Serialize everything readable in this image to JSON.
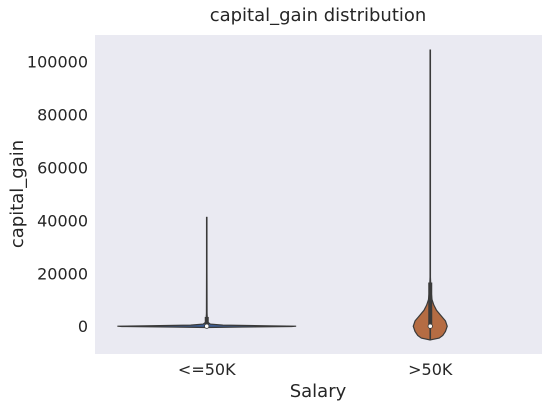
{
  "chart_data": {
    "type": "violin",
    "title": "capital_gain distribution",
    "xlabel": "Salary",
    "ylabel": "capital_gain",
    "categories": [
      "<=50K",
      ">50K"
    ],
    "ylim": [
      -10500,
      110000
    ],
    "yticks": [
      0,
      20000,
      40000,
      60000,
      80000,
      100000
    ],
    "grid": false,
    "violins": [
      {
        "category": "<=50K",
        "color": "#4C72B0",
        "min": -300,
        "max": 41310,
        "q1": 0,
        "median": 0,
        "q3": 0,
        "whisker_high": 3500,
        "density": [
          [
            -500,
            0.0
          ],
          [
            -300,
            0.4
          ],
          [
            -100,
            0.95
          ],
          [
            0,
            1.0
          ],
          [
            150,
            0.7
          ],
          [
            400,
            0.18
          ],
          [
            800,
            0.04
          ],
          [
            1500,
            0.012
          ],
          [
            3000,
            0.006
          ],
          [
            5000,
            0.003
          ],
          [
            41310,
            0.0
          ]
        ]
      },
      {
        "category": ">50K",
        "color": "#DD8452",
        "min": -5000,
        "max": 104500,
        "q1": -300,
        "median": 0,
        "q3": 300,
        "whisker_high": 16500,
        "density": [
          [
            -5200,
            0.0
          ],
          [
            -4500,
            0.1
          ],
          [
            -3500,
            0.14
          ],
          [
            -2000,
            0.17
          ],
          [
            0,
            0.19
          ],
          [
            2000,
            0.17
          ],
          [
            4000,
            0.12
          ],
          [
            6000,
            0.07
          ],
          [
            8000,
            0.04
          ],
          [
            10000,
            0.02
          ],
          [
            13000,
            0.01
          ],
          [
            16500,
            0.004
          ],
          [
            20000,
            0.0
          ]
        ]
      }
    ]
  }
}
